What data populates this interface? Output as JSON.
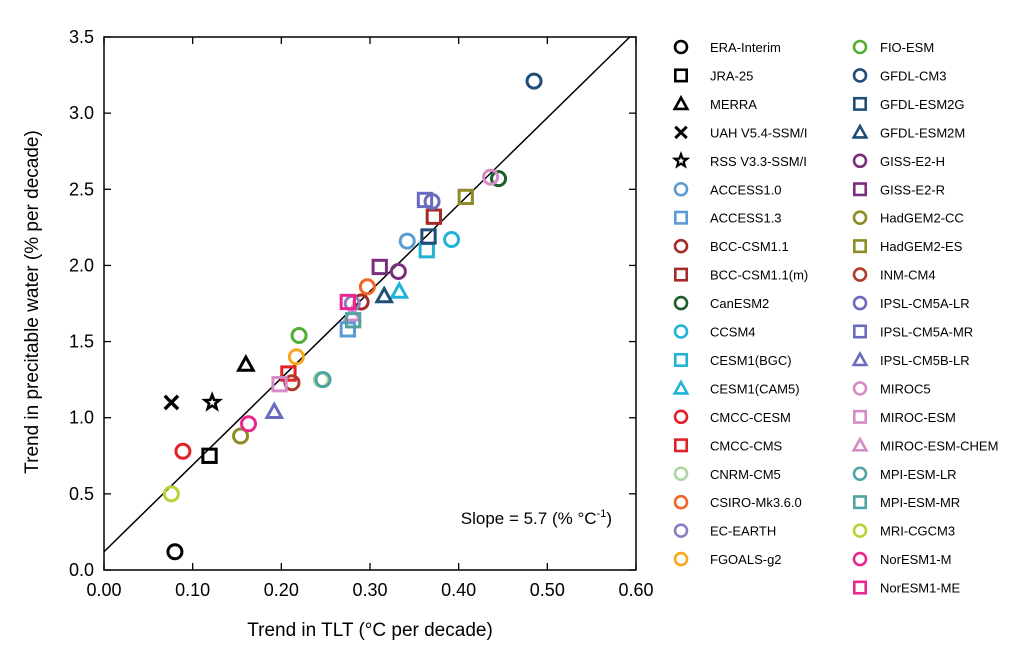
{
  "chart_data": {
    "type": "scatter",
    "xlabel": "Trend in TLT (°C per decade)",
    "ylabel": "Trend in precitable water (% per decade)",
    "xlim": [
      0.0,
      0.6
    ],
    "ylim": [
      0.0,
      3.5
    ],
    "xticks": [
      "0.00",
      "0.10",
      "0.20",
      "0.30",
      "0.40",
      "0.50",
      "0.60"
    ],
    "yticks": [
      "0.0",
      "0.5",
      "1.0",
      "1.5",
      "2.0",
      "2.5",
      "3.0",
      "3.5"
    ],
    "grid": false,
    "legend_position": "right",
    "fit_line": {
      "slope": 5.7,
      "intercept": 0.12
    },
    "annotation": {
      "prefix": "Slope  = 5.7 (% °C",
      "superscript": "-1",
      "suffix": ")"
    },
    "series": [
      {
        "name": "ERA-Interim",
        "marker": "circle",
        "color": "#000000",
        "x": 0.08,
        "y": 0.12
      },
      {
        "name": "JRA-25",
        "marker": "square",
        "color": "#000000",
        "x": 0.119,
        "y": 0.75
      },
      {
        "name": "MERRA",
        "marker": "triangle",
        "color": "#000000",
        "x": 0.16,
        "y": 1.35
      },
      {
        "name": "UAH V5.4-SSM/I",
        "marker": "cross",
        "color": "#000000",
        "x": 0.076,
        "y": 1.1
      },
      {
        "name": "RSS V3.3-SSM/I",
        "marker": "star",
        "color": "#000000",
        "x": 0.122,
        "y": 1.1
      },
      {
        "name": "ACCESS1.0",
        "marker": "circle",
        "color": "#5b9bd5",
        "x": 0.342,
        "y": 2.16
      },
      {
        "name": "ACCESS1.3",
        "marker": "square",
        "color": "#5b9bd5",
        "x": 0.275,
        "y": 1.58
      },
      {
        "name": "BCC-CSM1.1",
        "marker": "circle",
        "color": "#a52a2a",
        "x": 0.29,
        "y": 1.76
      },
      {
        "name": "BCC-CSM1.1(m)",
        "marker": "square",
        "color": "#a52a2a",
        "x": 0.372,
        "y": 2.32
      },
      {
        "name": "CanESM2",
        "marker": "circle",
        "color": "#1a5e2a",
        "x": 0.445,
        "y": 2.57
      },
      {
        "name": "CCSM4",
        "marker": "circle",
        "color": "#1fb3d8",
        "x": 0.392,
        "y": 2.17
      },
      {
        "name": "CESM1(BGC)",
        "marker": "square",
        "color": "#1fb3d8",
        "x": 0.364,
        "y": 2.1
      },
      {
        "name": "CESM1(CAM5)",
        "marker": "triangle",
        "color": "#1fb3d8",
        "x": 0.333,
        "y": 1.83
      },
      {
        "name": "CMCC-CESM",
        "marker": "circle",
        "color": "#e32227",
        "x": 0.089,
        "y": 0.78
      },
      {
        "name": "CMCC-CMS",
        "marker": "square",
        "color": "#e32227",
        "x": 0.208,
        "y": 1.29
      },
      {
        "name": "CNRM-CM5",
        "marker": "circle",
        "color": "#a8d8a0",
        "x": 0.245,
        "y": 1.25
      },
      {
        "name": "CSIRO-Mk3.6.0",
        "marker": "circle",
        "color": "#f26522",
        "x": 0.297,
        "y": 1.86
      },
      {
        "name": "EC-EARTH",
        "marker": "circle",
        "color": "#8e7cc3",
        "x": 0.28,
        "y": 1.75
      },
      {
        "name": "FGOALS-g2",
        "marker": "circle",
        "color": "#f7a81b",
        "x": 0.217,
        "y": 1.4
      },
      {
        "name": "FIO-ESM",
        "marker": "circle",
        "color": "#52ae32",
        "x": 0.22,
        "y": 1.54
      },
      {
        "name": "GFDL-CM3",
        "marker": "circle",
        "color": "#1f4e79",
        "x": 0.485,
        "y": 3.21
      },
      {
        "name": "GFDL-ESM2G",
        "marker": "square",
        "color": "#1f4e79",
        "x": 0.366,
        "y": 2.19
      },
      {
        "name": "GFDL-ESM2M",
        "marker": "triangle",
        "color": "#1f4e79",
        "x": 0.316,
        "y": 1.8
      },
      {
        "name": "GISS-E2-H",
        "marker": "circle",
        "color": "#7b2d7e",
        "x": 0.332,
        "y": 1.96
      },
      {
        "name": "GISS-E2-R",
        "marker": "square",
        "color": "#7b2d7e",
        "x": 0.311,
        "y": 1.99
      },
      {
        "name": "HadGEM2-CC",
        "marker": "circle",
        "color": "#8c8c22",
        "x": 0.154,
        "y": 0.88
      },
      {
        "name": "HadGEM2-ES",
        "marker": "square",
        "color": "#8c8c22",
        "x": 0.408,
        "y": 2.45
      },
      {
        "name": "INM-CM4",
        "marker": "circle",
        "color": "#b03a2e",
        "x": 0.212,
        "y": 1.23
      },
      {
        "name": "IPSL-CM5A-LR",
        "marker": "circle",
        "color": "#6a6abf",
        "x": 0.37,
        "y": 2.42
      },
      {
        "name": "IPSL-CM5A-MR",
        "marker": "square",
        "color": "#6a6abf",
        "x": 0.362,
        "y": 2.43
      },
      {
        "name": "IPSL-CM5B-LR",
        "marker": "triangle",
        "color": "#6a6abf",
        "x": 0.192,
        "y": 1.04
      },
      {
        "name": "MIROC5",
        "marker": "circle",
        "color": "#d48cc7",
        "x": 0.436,
        "y": 2.58
      },
      {
        "name": "MIROC-ESM",
        "marker": "square",
        "color": "#d48cc7",
        "x": 0.198,
        "y": 1.22
      },
      {
        "name": "MIROC-ESM-CHEM",
        "marker": "triangle",
        "color": "#d48cc7",
        "x": 0.28,
        "y": 1.68
      },
      {
        "name": "MPI-ESM-LR",
        "marker": "circle",
        "color": "#4fa3a0",
        "x": 0.247,
        "y": 1.25
      },
      {
        "name": "MPI-ESM-MR",
        "marker": "square",
        "color": "#4fa3a0",
        "x": 0.281,
        "y": 1.64
      },
      {
        "name": "MRI-CGCM3",
        "marker": "circle",
        "color": "#b5d334",
        "x": 0.076,
        "y": 0.5
      },
      {
        "name": "NorESM1-M",
        "marker": "circle",
        "color": "#ec268f",
        "x": 0.163,
        "y": 0.96
      },
      {
        "name": "NorESM1-ME",
        "marker": "square",
        "color": "#ec268f",
        "x": 0.275,
        "y": 1.76
      }
    ]
  }
}
